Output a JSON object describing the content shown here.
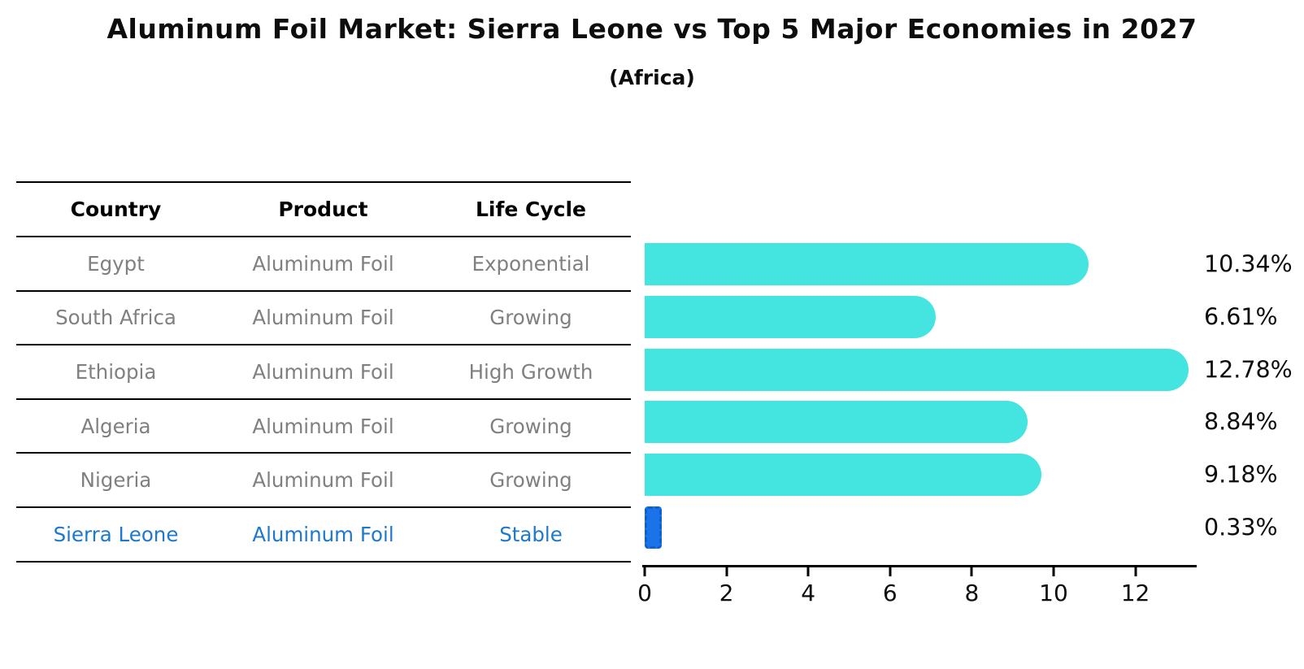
{
  "header": {
    "title": "Aluminum Foil Market: Sierra Leone vs Top 5 Major Economies in 2027",
    "subtitle": "(Africa)"
  },
  "table": {
    "headers": [
      "Country",
      "Product",
      "Life Cycle"
    ],
    "rows": [
      {
        "country": "Egypt",
        "product": "Aluminum Foil",
        "life_cycle": "Exponential",
        "highlight": false
      },
      {
        "country": "South Africa",
        "product": "Aluminum Foil",
        "life_cycle": "Growing",
        "highlight": false
      },
      {
        "country": "Ethiopia",
        "product": "Aluminum Foil",
        "life_cycle": "High Growth",
        "highlight": false
      },
      {
        "country": "Algeria",
        "product": "Aluminum Foil",
        "life_cycle": "Growing",
        "highlight": false
      },
      {
        "country": "Nigeria",
        "product": "Aluminum Foil",
        "life_cycle": "Growing",
        "highlight": false
      },
      {
        "country": "Sierra Leone",
        "product": "Aluminum Foil",
        "life_cycle": "Stable",
        "highlight": true
      }
    ]
  },
  "chart_data": {
    "type": "bar",
    "orientation": "horizontal",
    "title": "Aluminum Foil Market: Sierra Leone vs Top 5 Major Economies in 2027 (Africa)",
    "categories": [
      "Egypt",
      "South Africa",
      "Ethiopia",
      "Algeria",
      "Nigeria",
      "Sierra Leone"
    ],
    "values": [
      10.34,
      6.61,
      12.78,
      8.84,
      9.18,
      0.33
    ],
    "value_labels": [
      "10.34%",
      "6.61%",
      "12.78%",
      "8.84%",
      "9.18%",
      "0.33%"
    ],
    "xlabel": "",
    "ylabel": "",
    "xticks": [
      0,
      2,
      4,
      6,
      8,
      10,
      12
    ],
    "xlim": [
      0,
      13.5
    ],
    "grid": false,
    "legend": false,
    "highlight_index": 5
  },
  "colors": {
    "bar_color": "#44E4E0",
    "highlight_bar_color": "#1A73E8",
    "highlight_bar_border": "#0f5fd0",
    "highlight_text_color": "#1e78cc",
    "row_text_color": "#808080",
    "axis_color": "#000000"
  }
}
